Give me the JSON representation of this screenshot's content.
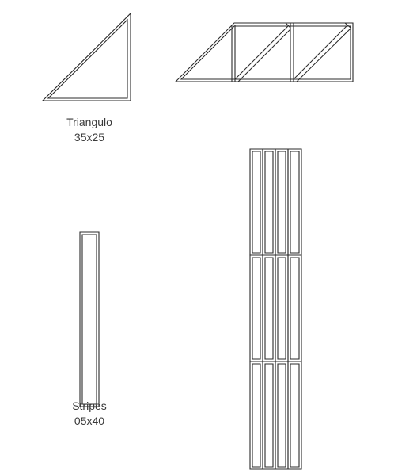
{
  "tiles": [
    {
      "name": "Triangulo",
      "size": "35x25"
    },
    {
      "name": "Stripes",
      "size": "05x40"
    }
  ],
  "colors": {
    "stroke": "#2b2b2b",
    "text": "#3a3a3a",
    "background": "#ffffff"
  }
}
